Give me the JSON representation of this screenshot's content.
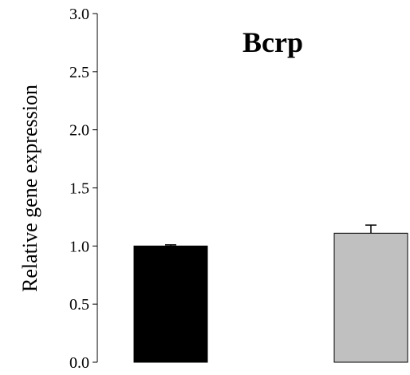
{
  "chart_data": {
    "type": "bar",
    "title": "Bcrp",
    "xlabel": "",
    "ylabel": "Relative gene expression",
    "ylim": [
      0,
      3.0
    ],
    "yticks": [
      "0.0",
      "0.5",
      "1.0",
      "1.5",
      "2.0",
      "2.5",
      "3.0"
    ],
    "grid": false,
    "legend": "none",
    "categories": [
      "",
      ""
    ],
    "values": [
      1.0,
      1.11
    ],
    "errors": [
      0.01,
      0.07
    ],
    "colors": [
      "#000000",
      "#c0c0c0"
    ],
    "edge_color": "#000000"
  }
}
